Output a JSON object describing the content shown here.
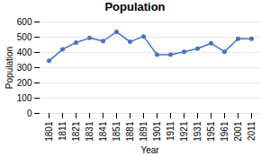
{
  "chart_data": {
    "type": "line",
    "title": "Population",
    "xlabel": "Year",
    "ylabel": "Population",
    "categories": [
      "1801",
      "1811",
      "1821",
      "1831",
      "1841",
      "1851",
      "1881",
      "1891",
      "1901",
      "1911",
      "1921",
      "1931",
      "1951",
      "1961",
      "2001",
      "2011"
    ],
    "values": [
      345,
      420,
      465,
      495,
      475,
      535,
      470,
      505,
      385,
      385,
      405,
      425,
      460,
      405,
      490,
      490
    ],
    "color": "#4472C4",
    "marker": "o",
    "ylim": [
      0,
      600
    ],
    "yticks": [
      0,
      100,
      200,
      300,
      400,
      500,
      600
    ],
    "grid": true
  }
}
